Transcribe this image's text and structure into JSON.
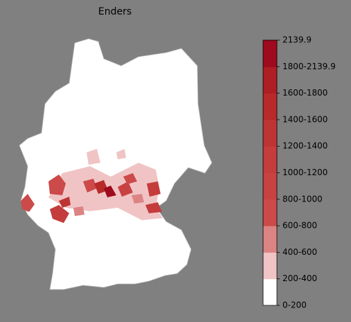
{
  "map": {
    "title": "Enders",
    "legend": {
      "labels": [
        "2139.9",
        "1800-2139.9",
        "1600-1800",
        "1400-1600",
        "1200-1400",
        "1000-1200",
        "800-1000",
        "600-800",
        "400-600",
        "200-400",
        "0-200"
      ],
      "colors": [
        "#ffffff",
        "#f0c4c4",
        "#dc8484",
        "#cc4a4a",
        "#c84242",
        "#c43c3c",
        "#be3434",
        "#b82a2a",
        "#ae1e24",
        "#9e0a1e"
      ]
    }
  }
}
